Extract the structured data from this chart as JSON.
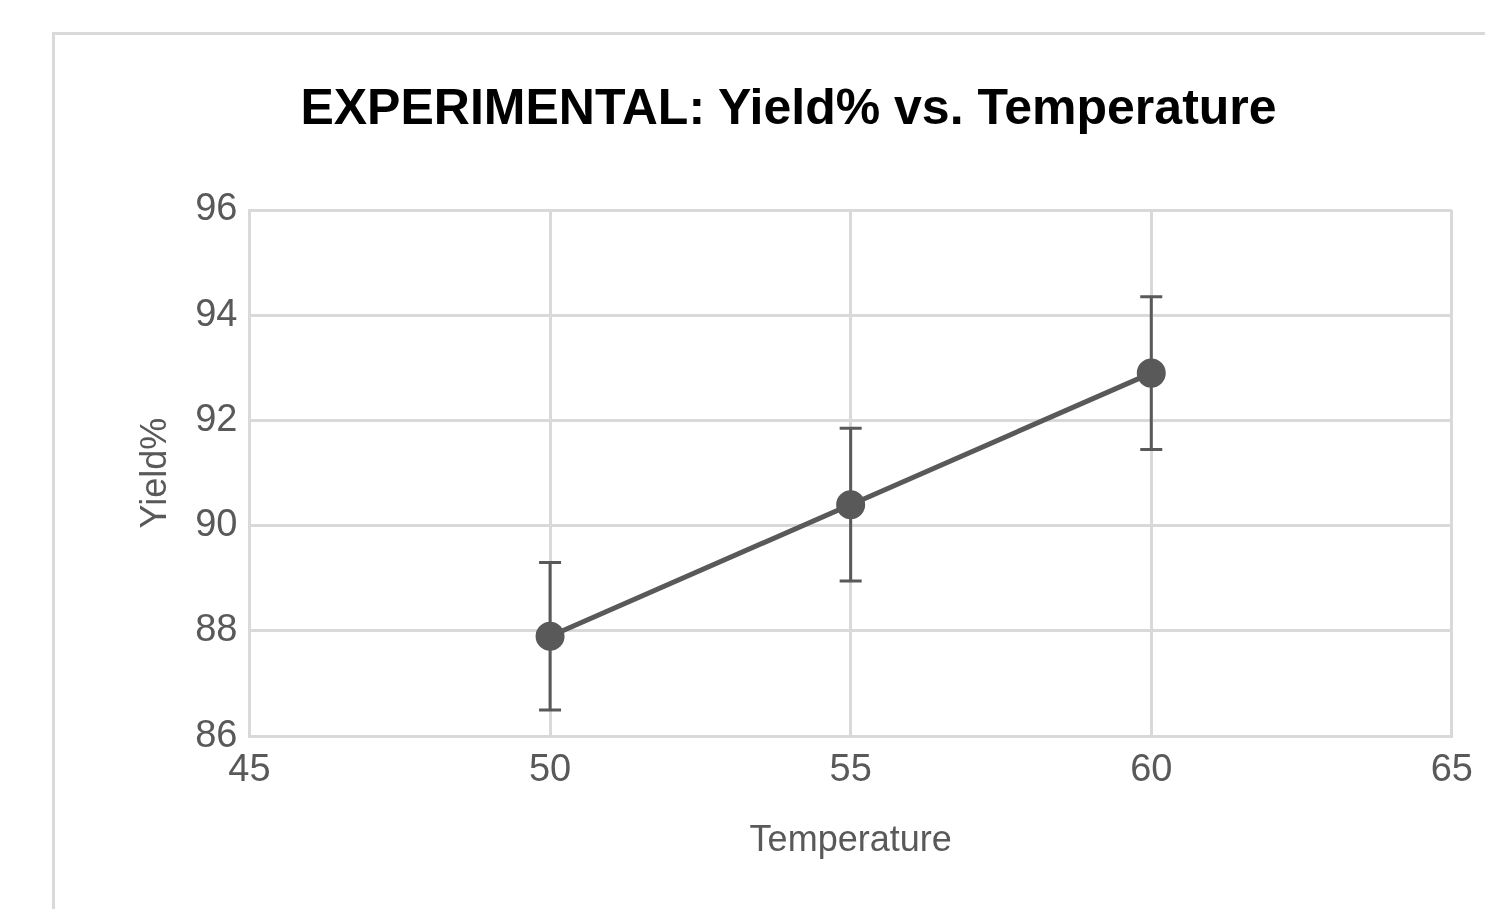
{
  "chart_data": {
    "type": "line",
    "title": "EXPERIMENTAL: Yield% vs. Temperature",
    "xlabel": "Temperature",
    "ylabel": "Yield%",
    "x": [
      50,
      55,
      60
    ],
    "series": [
      {
        "color": "#595959",
        "values": [
          87.9,
          90.4,
          92.9
        ],
        "errors": [
          1.4,
          1.45,
          1.45
        ]
      }
    ],
    "xlim": [
      45,
      65
    ],
    "xticks": [
      45,
      50,
      55,
      60,
      65
    ],
    "ylim": [
      86,
      96
    ],
    "yticks": [
      86,
      88,
      90,
      92,
      94,
      96
    ],
    "grid": true,
    "marker": "circle",
    "line_style": "solid"
  }
}
